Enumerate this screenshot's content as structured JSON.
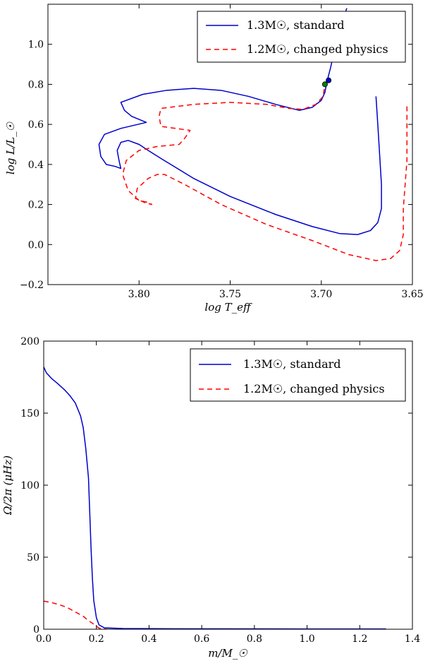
{
  "chart_data": [
    {
      "type": "line",
      "title": "",
      "xlabel": "log T_eff",
      "ylabel": "log L/L_☉",
      "xlim": [
        3.85,
        3.65
      ],
      "ylim": [
        -0.2,
        1.2
      ],
      "xticks": [
        3.8,
        3.75,
        3.7,
        3.65
      ],
      "xtick_labels": [
        "3.80",
        "3.75",
        "3.70",
        "3.65"
      ],
      "yticks": [
        -0.2,
        0.0,
        0.2,
        0.4,
        0.6,
        0.8,
        1.0
      ],
      "ytick_labels": [
        "−0.2",
        "0.0",
        "0.2",
        "0.4",
        "0.6",
        "0.8",
        "1.0"
      ],
      "legend": {
        "placement": "top-right",
        "entries": [
          "1.3M☉, standard",
          "1.2M☉, changed physics"
        ]
      },
      "series": [
        {
          "name": "1.3M☉, standard",
          "style": "solid",
          "color": "#0000cc",
          "points": [
            [
              3.67,
              0.74
            ],
            [
              3.669,
              0.6
            ],
            [
              3.668,
              0.45
            ],
            [
              3.667,
              0.3
            ],
            [
              3.667,
              0.18
            ],
            [
              3.669,
              0.11
            ],
            [
              3.673,
              0.07
            ],
            [
              3.68,
              0.05
            ],
            [
              3.69,
              0.055
            ],
            [
              3.705,
              0.09
            ],
            [
              3.725,
              0.15
            ],
            [
              3.75,
              0.24
            ],
            [
              3.77,
              0.33
            ],
            [
              3.788,
              0.43
            ],
            [
              3.795,
              0.47
            ],
            [
              3.8,
              0.5
            ],
            [
              3.806,
              0.52
            ],
            [
              3.81,
              0.51
            ],
            [
              3.812,
              0.47
            ],
            [
              3.811,
              0.42
            ],
            [
              3.81,
              0.38
            ],
            [
              3.813,
              0.39
            ],
            [
              3.818,
              0.4
            ],
            [
              3.821,
              0.44
            ],
            [
              3.822,
              0.5
            ],
            [
              3.819,
              0.55
            ],
            [
              3.81,
              0.58
            ],
            [
              3.796,
              0.61
            ],
            [
              3.804,
              0.64
            ],
            [
              3.808,
              0.67
            ],
            [
              3.81,
              0.71
            ],
            [
              3.798,
              0.75
            ],
            [
              3.785,
              0.77
            ],
            [
              3.77,
              0.78
            ],
            [
              3.755,
              0.77
            ],
            [
              3.74,
              0.74
            ],
            [
              3.725,
              0.7
            ],
            [
              3.712,
              0.67
            ],
            [
              3.705,
              0.685
            ],
            [
              3.7,
              0.72
            ],
            [
              3.698,
              0.76
            ],
            [
              3.697,
              0.81
            ],
            [
              3.695,
              0.88
            ],
            [
              3.692,
              1.0
            ],
            [
              3.689,
              1.1
            ],
            [
              3.686,
              1.18
            ]
          ]
        },
        {
          "name": "1.2M☉, changed physics",
          "style": "dashed",
          "color": "#ff0000",
          "points": [
            [
              3.653,
              0.69
            ],
            [
              3.653,
              0.56
            ],
            [
              3.653,
              0.42
            ],
            [
              3.654,
              0.3
            ],
            [
              3.655,
              0.18
            ],
            [
              3.655,
              0.05
            ],
            [
              3.657,
              -0.03
            ],
            [
              3.662,
              -0.07
            ],
            [
              3.67,
              -0.08
            ],
            [
              3.685,
              -0.05
            ],
            [
              3.705,
              0.02
            ],
            [
              3.73,
              0.1
            ],
            [
              3.755,
              0.2
            ],
            [
              3.775,
              0.3
            ],
            [
              3.786,
              0.35
            ],
            [
              3.79,
              0.35
            ],
            [
              3.795,
              0.33
            ],
            [
              3.801,
              0.28
            ],
            [
              3.802,
              0.23
            ],
            [
              3.797,
              0.21
            ],
            [
              3.793,
              0.2
            ],
            [
              3.795,
              0.21
            ],
            [
              3.8,
              0.22
            ],
            [
              3.806,
              0.27
            ],
            [
              3.809,
              0.35
            ],
            [
              3.807,
              0.42
            ],
            [
              3.8,
              0.47
            ],
            [
              3.79,
              0.49
            ],
            [
              3.778,
              0.5
            ],
            [
              3.775,
              0.53
            ],
            [
              3.772,
              0.57
            ],
            [
              3.78,
              0.58
            ],
            [
              3.788,
              0.59
            ],
            [
              3.789,
              0.64
            ],
            [
              3.788,
              0.68
            ],
            [
              3.77,
              0.7
            ],
            [
              3.75,
              0.71
            ],
            [
              3.73,
              0.7
            ],
            [
              3.718,
              0.68
            ],
            [
              3.71,
              0.675
            ],
            [
              3.703,
              0.7
            ],
            [
              3.699,
              0.74
            ],
            [
              3.698,
              0.8
            ]
          ]
        }
      ],
      "markers": [
        {
          "name": "blue-dot",
          "x": 3.696,
          "y": 0.82,
          "color": "#0000cc"
        },
        {
          "name": "green-dot",
          "x": 3.698,
          "y": 0.8,
          "color": "#008000"
        }
      ]
    },
    {
      "type": "line",
      "title": "",
      "xlabel": "m/M_☉",
      "ylabel": "Ω/2π (μHz)",
      "xlim": [
        0.0,
        1.4
      ],
      "ylim": [
        0,
        200
      ],
      "xticks": [
        0.0,
        0.2,
        0.4,
        0.6,
        0.8,
        1.0,
        1.2,
        1.4
      ],
      "xtick_labels": [
        "0.0",
        "0.2",
        "0.4",
        "0.6",
        "0.8",
        "1.0",
        "1.2",
        "1.4"
      ],
      "yticks": [
        0,
        50,
        100,
        150,
        200
      ],
      "ytick_labels": [
        "0",
        "50",
        "100",
        "150",
        "200"
      ],
      "legend": {
        "placement": "top-right",
        "entries": [
          "1.3M☉, standard",
          "1.2M☉, changed physics"
        ]
      },
      "series": [
        {
          "name": "1.3M☉, standard",
          "style": "solid",
          "color": "#0000cc",
          "points": [
            [
              0.0,
              182
            ],
            [
              0.01,
              178
            ],
            [
              0.03,
              174
            ],
            [
              0.05,
              171
            ],
            [
              0.08,
              166
            ],
            [
              0.1,
              162
            ],
            [
              0.12,
              157
            ],
            [
              0.14,
              148
            ],
            [
              0.15,
              140
            ],
            [
              0.16,
              125
            ],
            [
              0.17,
              105
            ],
            [
              0.175,
              80
            ],
            [
              0.18,
              55
            ],
            [
              0.185,
              35
            ],
            [
              0.19,
              20
            ],
            [
              0.2,
              8
            ],
            [
              0.21,
              3
            ],
            [
              0.23,
              1
            ],
            [
              0.3,
              0.5
            ],
            [
              0.5,
              0.3
            ],
            [
              1.0,
              0.2
            ],
            [
              1.3,
              0.2
            ]
          ]
        },
        {
          "name": "1.2M☉, changed physics",
          "style": "dashed",
          "color": "#ff0000",
          "points": [
            [
              0.0,
              19.5
            ],
            [
              0.03,
              18.5
            ],
            [
              0.06,
              17
            ],
            [
              0.09,
              15
            ],
            [
              0.12,
              12
            ],
            [
              0.15,
              9
            ],
            [
              0.17,
              6
            ],
            [
              0.19,
              3.5
            ],
            [
              0.2,
              2
            ],
            [
              0.21,
              0.8
            ],
            [
              0.22,
              0.2
            ],
            [
              0.24,
              0
            ]
          ]
        }
      ]
    }
  ]
}
